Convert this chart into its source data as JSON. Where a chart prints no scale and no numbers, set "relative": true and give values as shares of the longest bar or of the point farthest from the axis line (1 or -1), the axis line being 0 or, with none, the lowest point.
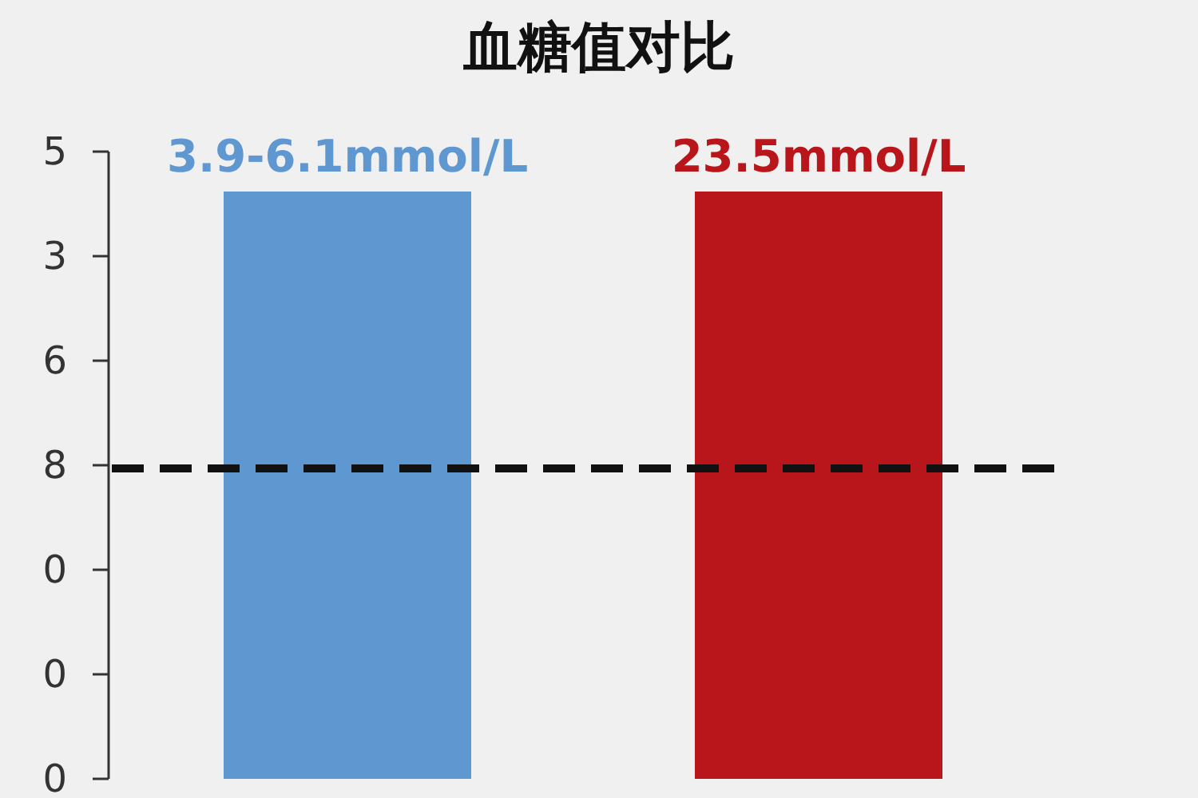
{
  "chart_data": {
    "type": "bar",
    "title": "血糖值对比",
    "categories": [
      "3.9-6.1mmol/L",
      "23.5mmol/L"
    ],
    "values": [
      1,
      1
    ],
    "colors": [
      "#5f97d0",
      "#b8161a"
    ],
    "relative": true,
    "annotations": [
      "5",
      "3",
      "6",
      "8",
      "0",
      "0",
      "0"
    ],
    "ref_lines": [
      {
        "axis": "y",
        "value": 0.53,
        "color": "#111111",
        "line_style": "dashed"
      }
    ]
  }
}
